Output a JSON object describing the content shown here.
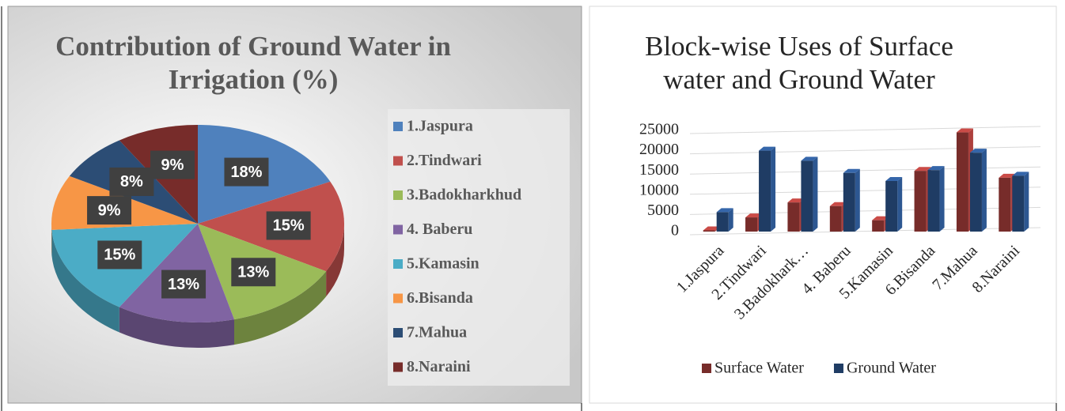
{
  "chart_data": [
    {
      "type": "pie",
      "title": "Contribution of Ground Water in Irrigation (%)",
      "categories": [
        "1.Jaspura",
        "2.Tindwari",
        "3.Badokharkhud",
        "4. Baberu",
        "5.Kamasin",
        "6.Bisanda",
        "7.Mahua",
        "8.Naraini"
      ],
      "values": [
        18,
        15,
        13,
        13,
        15,
        9,
        8,
        9
      ],
      "value_labels": [
        "18%",
        "15%",
        "13%",
        "13%",
        "15%",
        "9%",
        "8%",
        "9%"
      ],
      "colors": [
        "#4f81bd",
        "#c0504d",
        "#9bbb59",
        "#8064a2",
        "#4bacc6",
        "#f79646",
        "#2c4d75",
        "#772c2a"
      ],
      "legend": "right"
    },
    {
      "type": "bar",
      "title": "Block-wise Uses of Surface water and Ground Water",
      "categories": [
        "1.Jaspura",
        "2.Tindwari",
        "3.Badokhark…",
        "4. Baberu",
        "5.Kamasin",
        "6.Bisanda",
        "7.Mahua",
        "8.Naraini"
      ],
      "series": [
        {
          "name": "Surface Water",
          "color": "#772c2a",
          "values": [
            300,
            3500,
            7200,
            6300,
            2800,
            15000,
            24500,
            13300
          ]
        },
        {
          "name": "Ground Water",
          "color": "#1f3c64",
          "values": [
            4800,
            20000,
            17500,
            14500,
            12500,
            15200,
            19500,
            13800
          ]
        }
      ],
      "ylim": [
        0,
        25000
      ],
      "yticks": [
        0,
        5000,
        10000,
        15000,
        20000,
        25000
      ],
      "grid": true,
      "legend": "bottom"
    }
  ]
}
